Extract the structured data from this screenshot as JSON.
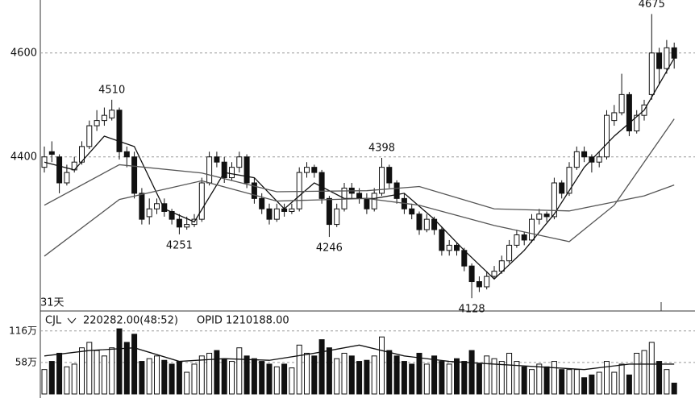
{
  "chart_data": {
    "type": "candlestick",
    "ylim": [
      4105,
      4702
    ],
    "yticks": [
      4400,
      4600
    ],
    "grid": true,
    "candles": [
      [
        4380,
        4420,
        4370,
        4400
      ],
      [
        4410,
        4430,
        4390,
        4405
      ],
      [
        4400,
        4405,
        4330,
        4350
      ],
      [
        4350,
        4385,
        4345,
        4370
      ],
      [
        4375,
        4400,
        4370,
        4390
      ],
      [
        4390,
        4430,
        4385,
        4420
      ],
      [
        4420,
        4470,
        4415,
        4460
      ],
      [
        4460,
        4490,
        4450,
        4470
      ],
      [
        4470,
        4495,
        4460,
        4480
      ],
      [
        4475,
        4510,
        4470,
        4490
      ],
      [
        4490,
        4495,
        4395,
        4410
      ],
      [
        4410,
        4420,
        4380,
        4400
      ],
      [
        4400,
        4410,
        4320,
        4330
      ],
      [
        4330,
        4340,
        4270,
        4280
      ],
      [
        4285,
        4320,
        4270,
        4300
      ],
      [
        4300,
        4320,
        4290,
        4310
      ],
      [
        4310,
        4320,
        4285,
        4295
      ],
      [
        4295,
        4300,
        4270,
        4280
      ],
      [
        4280,
        4290,
        4251,
        4265
      ],
      [
        4265,
        4285,
        4260,
        4270
      ],
      [
        4270,
        4290,
        4265,
        4280
      ],
      [
        4280,
        4360,
        4275,
        4350
      ],
      [
        4350,
        4410,
        4345,
        4400
      ],
      [
        4400,
        4410,
        4380,
        4390
      ],
      [
        4390,
        4400,
        4350,
        4360
      ],
      [
        4360,
        4390,
        4355,
        4380
      ],
      [
        4380,
        4410,
        4370,
        4400
      ],
      [
        4400,
        4405,
        4340,
        4350
      ],
      [
        4350,
        4360,
        4310,
        4320
      ],
      [
        4320,
        4330,
        4290,
        4300
      ],
      [
        4300,
        4310,
        4270,
        4280
      ],
      [
        4280,
        4310,
        4275,
        4300
      ],
      [
        4300,
        4310,
        4285,
        4295
      ],
      [
        4295,
        4310,
        4290,
        4300
      ],
      [
        4300,
        4380,
        4295,
        4370
      ],
      [
        4370,
        4390,
        4360,
        4380
      ],
      [
        4380,
        4385,
        4360,
        4370
      ],
      [
        4370,
        4375,
        4310,
        4320
      ],
      [
        4320,
        4325,
        4246,
        4270
      ],
      [
        4270,
        4310,
        4265,
        4300
      ],
      [
        4300,
        4350,
        4295,
        4340
      ],
      [
        4340,
        4350,
        4320,
        4330
      ],
      [
        4330,
        4340,
        4310,
        4320
      ],
      [
        4320,
        4330,
        4290,
        4300
      ],
      [
        4300,
        4340,
        4295,
        4330
      ],
      [
        4330,
        4398,
        4325,
        4380
      ],
      [
        4380,
        4385,
        4340,
        4350
      ],
      [
        4350,
        4355,
        4310,
        4320
      ],
      [
        4320,
        4330,
        4290,
        4300
      ],
      [
        4300,
        4310,
        4280,
        4290
      ],
      [
        4290,
        4295,
        4250,
        4260
      ],
      [
        4260,
        4290,
        4255,
        4280
      ],
      [
        4280,
        4285,
        4250,
        4260
      ],
      [
        4260,
        4265,
        4210,
        4220
      ],
      [
        4220,
        4240,
        4210,
        4230
      ],
      [
        4230,
        4235,
        4210,
        4220
      ],
      [
        4220,
        4225,
        4180,
        4190
      ],
      [
        4190,
        4195,
        4128,
        4160
      ],
      [
        4160,
        4170,
        4140,
        4150
      ],
      [
        4150,
        4180,
        4145,
        4170
      ],
      [
        4170,
        4190,
        4165,
        4180
      ],
      [
        4180,
        4210,
        4175,
        4200
      ],
      [
        4200,
        4240,
        4195,
        4230
      ],
      [
        4230,
        4260,
        4225,
        4250
      ],
      [
        4250,
        4255,
        4230,
        4240
      ],
      [
        4240,
        4290,
        4235,
        4280
      ],
      [
        4280,
        4300,
        4270,
        4290
      ],
      [
        4290,
        4295,
        4275,
        4285
      ],
      [
        4285,
        4360,
        4280,
        4350
      ],
      [
        4350,
        4355,
        4320,
        4330
      ],
      [
        4330,
        4390,
        4325,
        4380
      ],
      [
        4380,
        4420,
        4375,
        4410
      ],
      [
        4410,
        4420,
        4390,
        4400
      ],
      [
        4400,
        4405,
        4370,
        4390
      ],
      [
        4390,
        4410,
        4380,
        4400
      ],
      [
        4400,
        4490,
        4395,
        4480
      ],
      [
        4470,
        4500,
        4460,
        4485
      ],
      [
        4485,
        4560,
        4480,
        4520
      ],
      [
        4520,
        4525,
        4440,
        4450
      ],
      [
        4450,
        4490,
        4445,
        4480
      ],
      [
        4480,
        4510,
        4470,
        4500
      ],
      [
        4520,
        4675,
        4510,
        4600
      ],
      [
        4600,
        4610,
        4540,
        4570
      ],
      [
        4570,
        4625,
        4560,
        4610
      ],
      [
        4610,
        4620,
        4570,
        4590
      ]
    ],
    "moving_averages": [
      {
        "color": "#111",
        "x": [
          0,
          4,
          8,
          12,
          16,
          20,
          24,
          28,
          32,
          36,
          40,
          44,
          48,
          52,
          56,
          60,
          64,
          68,
          72,
          76,
          80,
          84
        ],
        "values": [
          4390,
          4375,
          4440,
          4420,
          4300,
          4275,
          4370,
          4360,
          4300,
          4350,
          4320,
          4320,
          4330,
          4280,
          4220,
          4165,
          4220,
          4290,
          4380,
          4440,
          4490,
          4590
        ]
      },
      {
        "color": "#555",
        "x": [
          0,
          10,
          21,
          31,
          43,
          50,
          60,
          70,
          80,
          84
        ],
        "values": [
          4307,
          4385,
          4369,
          4333,
          4335,
          4343,
          4300,
          4296,
          4325,
          4346
        ]
      },
      {
        "color": "#555",
        "x": [
          0,
          10,
          21,
          31,
          43,
          50,
          60,
          70,
          76,
          84
        ],
        "values": [
          4209,
          4318,
          4354,
          4315,
          4320,
          4307,
          4268,
          4237,
          4307,
          4473
        ]
      }
    ],
    "high_labels": [
      4510,
      4398,
      4675
    ],
    "low_labels": [
      4251,
      4246,
      4128
    ],
    "period_label": "31天",
    "volume": {
      "indicator": "CJL",
      "reading": "220282.00(48:52)",
      "extra": "OPID 1210188.00",
      "ylim": [
        0,
        135
      ],
      "yticks": [
        {
          "value": 58,
          "label": "58万"
        },
        {
          "value": 116,
          "label": "116万"
        }
      ],
      "values": [
        45,
        60,
        75,
        50,
        55,
        85,
        95,
        80,
        70,
        85,
        120,
        95,
        110,
        60,
        65,
        70,
        62,
        55,
        60,
        40,
        55,
        70,
        75,
        80,
        65,
        60,
        85,
        70,
        65,
        60,
        55,
        50,
        55,
        48,
        90,
        75,
        70,
        100,
        85,
        65,
        75,
        70,
        60,
        62,
        70,
        105,
        80,
        70,
        60,
        55,
        75,
        55,
        70,
        60,
        55,
        65,
        60,
        80,
        55,
        70,
        65,
        60,
        75,
        60,
        50,
        45,
        55,
        50,
        60,
        45,
        45,
        45,
        30,
        35,
        40,
        60,
        40,
        55,
        35,
        75,
        80,
        95,
        60,
        45,
        20
      ],
      "average": {
        "color": "#111",
        "x": [
          0,
          6,
          12,
          18,
          24,
          30,
          36,
          42,
          48,
          54,
          60,
          66,
          72,
          78,
          84
        ],
        "values": [
          70,
          80,
          85,
          60,
          65,
          62,
          75,
          90,
          70,
          60,
          55,
          50,
          45,
          55,
          55
        ]
      }
    }
  }
}
